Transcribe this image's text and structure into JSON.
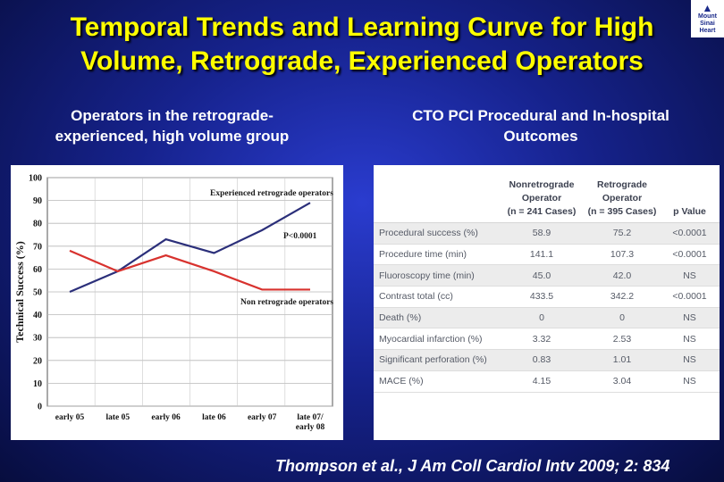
{
  "slide": {
    "title_line1": "Temporal Trends and Learning Curve for High",
    "title_line2": "Volume, Retrograde, Experienced Operators",
    "logo": {
      "line1": "Mount",
      "line2": "Sinai",
      "line3": "Heart"
    },
    "left_heading_line1": "Operators in the retrograde-",
    "left_heading_line2": "experienced, high volume group",
    "right_heading_line1": "CTO PCI Procedural and In-hospital",
    "right_heading_line2": "Outcomes",
    "citation": "Thompson et al., J Am Coll Cardiol Intv 2009; 2: 834",
    "colors": {
      "title": "#ffff00",
      "series_retro": "#2b2f7a",
      "series_nonretro": "#d8322e"
    }
  },
  "chart_data": {
    "type": "line",
    "title": "",
    "xlabel": "",
    "ylabel": "Technical Success (%)",
    "ylim": [
      0,
      100
    ],
    "yticks": [
      0,
      10,
      20,
      30,
      40,
      50,
      60,
      70,
      80,
      90,
      100
    ],
    "categories": [
      "early 05",
      "late 05",
      "early 06",
      "late 06",
      "early 07",
      "late 07/ early 08"
    ],
    "series": [
      {
        "name": "Experienced retrograde operators",
        "values": [
          50,
          59,
          73,
          67,
          77,
          89
        ],
        "color": "#2b2f7a"
      },
      {
        "name": "Non retrograde operators",
        "values": [
          68,
          59,
          66,
          59,
          51,
          51
        ],
        "color": "#d8322e"
      }
    ],
    "annotations": [
      "P<0.0001"
    ]
  },
  "table": {
    "headers": {
      "col0": "",
      "col1_line1": "Nonretrograde",
      "col1_line2": "Operator",
      "col1_line3": "(n = 241 Cases)",
      "col2_line1": "Retrograde",
      "col2_line2": "Operator",
      "col2_line3": "(n = 395 Cases)",
      "col3": "p Value"
    },
    "rows": [
      [
        "Procedural success (%)",
        "58.9",
        "75.2",
        "<0.0001"
      ],
      [
        "Procedure time (min)",
        "141.1",
        "107.3",
        "<0.0001"
      ],
      [
        "Fluoroscopy time (min)",
        "45.0",
        "42.0",
        "NS"
      ],
      [
        "Contrast total (cc)",
        "433.5",
        "342.2",
        "<0.0001"
      ],
      [
        "Death (%)",
        "0",
        "0",
        "NS"
      ],
      [
        "Myocardial infarction (%)",
        "3.32",
        "2.53",
        "NS"
      ],
      [
        "Significant perforation (%)",
        "0.83",
        "1.01",
        "NS"
      ],
      [
        "MACE (%)",
        "4.15",
        "3.04",
        "NS"
      ]
    ]
  }
}
